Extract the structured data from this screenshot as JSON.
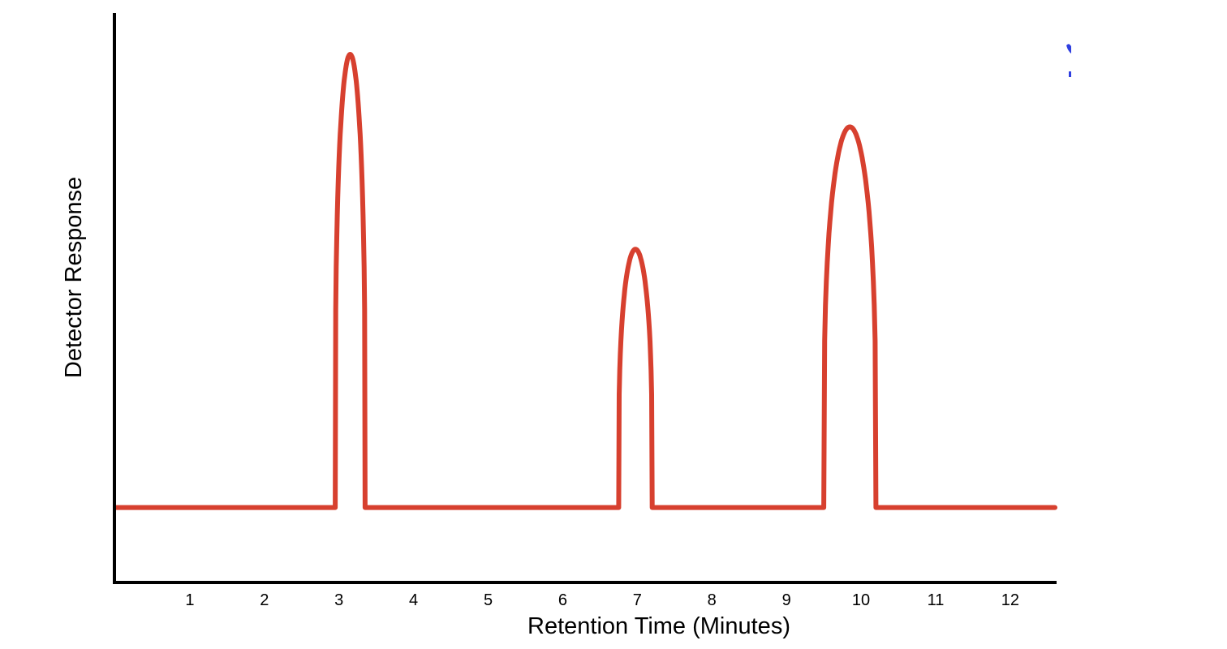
{
  "chart_data": {
    "type": "line",
    "title": "",
    "xlabel": "Retention Time (Minutes)",
    "ylabel": "Detector Response",
    "x_ticks": [
      1,
      2,
      3,
      4,
      5,
      6,
      7,
      8,
      9,
      10,
      11,
      12
    ],
    "x_tick_labels": [
      "1",
      "2",
      "3",
      "4",
      "5",
      "6",
      "7",
      "8",
      "9",
      "10",
      "11",
      "12"
    ],
    "xlim": [
      0,
      12.6
    ],
    "ylim": [
      -0.16,
      1.12
    ],
    "y_ticks_shown": false,
    "grid": false,
    "legend": "none",
    "baseline": 0,
    "series": [
      {
        "color": "#d7402f",
        "peaks": [
          {
            "retention_time": 3.15,
            "height": 1.0,
            "start": 2.95,
            "end": 3.35
          },
          {
            "retention_time": 6.95,
            "height": 0.57,
            "start": 6.75,
            "end": 7.2
          },
          {
            "retention_time": 9.85,
            "height": 0.84,
            "start": 9.5,
            "end": 10.2
          }
        ]
      }
    ]
  },
  "colors": {
    "axis": "#000000",
    "trace": "#d7402f",
    "marker": "#2f3fe0"
  }
}
